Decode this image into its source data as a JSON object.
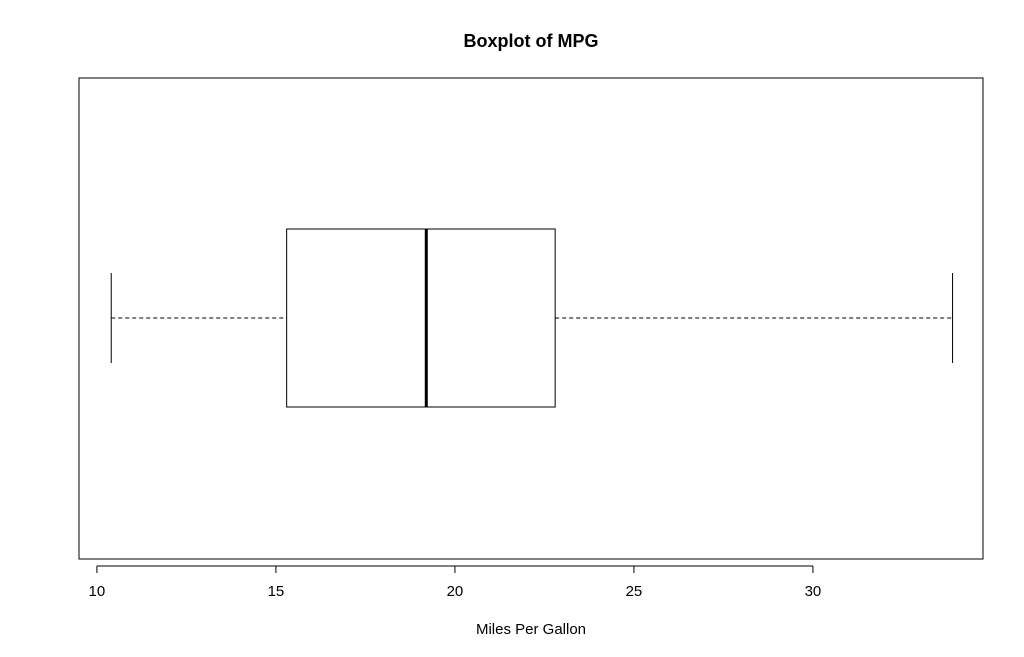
{
  "chart_data": {
    "type": "boxplot",
    "orientation": "horizontal",
    "title": "Boxplot of MPG",
    "xlabel": "Miles Per Gallon",
    "ylabel": "",
    "xlim": [
      9.5,
      34.75
    ],
    "ticks": [
      10,
      15,
      20,
      25,
      30
    ],
    "tick_labels": [
      "10",
      "15",
      "20",
      "25",
      "30"
    ],
    "grid": false,
    "box": {
      "min": 10.4,
      "q1": 15.3,
      "median": 19.2,
      "q3": 22.8,
      "max": 33.9
    }
  }
}
